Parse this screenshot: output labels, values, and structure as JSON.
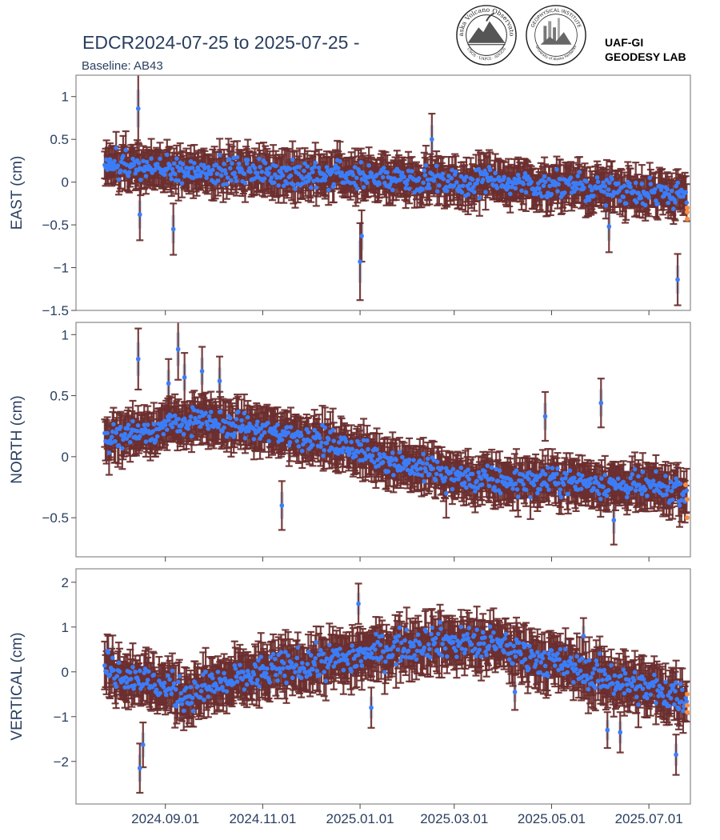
{
  "header": {
    "title": "EDCR2024-07-25 to 2025-07-25 -",
    "subtitle": "Baseline: AB43",
    "lab_line1": "UAF-GI",
    "lab_line2": "GEODESY LAB",
    "logo_avo_text": "Alaska Volcano Observatory",
    "logo_avo_bottom": "USGS · UAFGI · ADGGS",
    "logo_gi_text": "GEOPHYSICAL INSTITUTE",
    "logo_gi_bottom": "University of Alaska Fairbanks"
  },
  "colors": {
    "errorbar": "#6b2e2e",
    "point": "#3b7df8",
    "highlight": "#fc8d3c",
    "band": "#c8dcee",
    "axis_text": "#2a3f5f",
    "frame": "#888888"
  },
  "chart_data": [
    {
      "type": "scatter",
      "ylabel": "EAST (cm)",
      "ylim": [
        -1.5,
        1.25
      ],
      "yticks": [
        {
          "v": 1,
          "t": "1"
        },
        {
          "v": 0.5,
          "t": "0.5"
        },
        {
          "v": 0,
          "t": "0"
        },
        {
          "v": -0.5,
          "t": "−0.5"
        },
        {
          "v": -1,
          "t": "−1"
        },
        {
          "v": -1.5,
          "t": "−1.5"
        }
      ],
      "trend": [
        [
          0,
          0.18
        ],
        [
          90,
          0.13
        ],
        [
          180,
          0.03
        ],
        [
          280,
          -0.03
        ],
        [
          365,
          -0.15
        ]
      ],
      "spread": 0.15,
      "err": 0.2,
      "outliers": [
        [
          21,
          0.86,
          0.4
        ],
        [
          22,
          -0.38,
          0.3
        ],
        [
          43,
          -0.55,
          0.3
        ],
        [
          160,
          -0.93,
          0.45
        ],
        [
          161,
          -0.63,
          0.3
        ],
        [
          205,
          0.5,
          0.3
        ],
        [
          316,
          -0.52,
          0.3
        ],
        [
          359,
          -1.14,
          0.3
        ]
      ],
      "highlight": [
        [
          365,
          -0.35
        ],
        [
          365,
          -0.3
        ],
        [
          365,
          -0.43
        ]
      ]
    },
    {
      "type": "scatter",
      "ylabel": "NORTH (cm)",
      "ylim": [
        -0.82,
        1.1
      ],
      "yticks": [
        {
          "v": 1,
          "t": "1"
        },
        {
          "v": 0.5,
          "t": "0.5"
        },
        {
          "v": 0,
          "t": "0"
        },
        {
          "v": -0.5,
          "t": "−0.5"
        }
      ],
      "trend": [
        [
          0,
          0.15
        ],
        [
          60,
          0.3
        ],
        [
          130,
          0.15
        ],
        [
          185,
          -0.05
        ],
        [
          230,
          -0.2
        ],
        [
          290,
          -0.2
        ],
        [
          365,
          -0.28
        ]
      ],
      "spread": 0.1,
      "err": 0.15,
      "outliers": [
        [
          21,
          0.8,
          0.25
        ],
        [
          40,
          0.6,
          0.2
        ],
        [
          46,
          0.88,
          0.25
        ],
        [
          50,
          0.65,
          0.2
        ],
        [
          61,
          0.7,
          0.2
        ],
        [
          72,
          0.62,
          0.2
        ],
        [
          111,
          -0.4,
          0.2
        ],
        [
          214,
          -0.3,
          0.2
        ],
        [
          276,
          0.33,
          0.2
        ],
        [
          311,
          0.44,
          0.2
        ],
        [
          319,
          -0.52,
          0.2
        ]
      ],
      "highlight": [
        [
          364,
          -0.23
        ],
        [
          365,
          -0.35
        ],
        [
          365,
          -0.5
        ]
      ]
    },
    {
      "type": "scatter",
      "ylabel": "VERTICAL (cm)",
      "ylim": [
        -2.95,
        2.3
      ],
      "yticks": [
        {
          "v": 2,
          "t": "2"
        },
        {
          "v": 1,
          "t": "1"
        },
        {
          "v": 0,
          "t": "0"
        },
        {
          "v": -1,
          "t": "−1"
        },
        {
          "v": -2,
          "t": "−2"
        }
      ],
      "trend": [
        [
          0,
          0.1
        ],
        [
          25,
          -0.2
        ],
        [
          50,
          -0.5
        ],
        [
          100,
          0.0
        ],
        [
          150,
          0.3
        ],
        [
          205,
          0.7
        ],
        [
          245,
          0.6
        ],
        [
          300,
          0.0
        ],
        [
          365,
          -0.6
        ]
      ],
      "spread": 0.35,
      "err": 0.45,
      "outliers": [
        [
          22,
          -2.15,
          0.55
        ],
        [
          24,
          -1.63,
          0.5
        ],
        [
          159,
          1.52,
          0.45
        ],
        [
          167,
          -0.8,
          0.45
        ],
        [
          257,
          -0.45,
          0.4
        ],
        [
          300,
          0.8,
          0.4
        ],
        [
          315,
          -1.3,
          0.4
        ],
        [
          323,
          -1.35,
          0.45
        ],
        [
          358,
          -1.85,
          0.45
        ]
      ],
      "highlight": [
        [
          365,
          -0.75
        ],
        [
          365,
          -0.5
        ],
        [
          365,
          -0.9
        ]
      ]
    }
  ],
  "x_axis": {
    "start": "2024-07-25",
    "end": "2025-07-25",
    "ticks": [
      {
        "date": "2024-09-01",
        "t": "2024.09.01"
      },
      {
        "date": "2024-11-01",
        "t": "2024.11.01"
      },
      {
        "date": "2025-01-01",
        "t": "2025.01.01"
      },
      {
        "date": "2025-03-01",
        "t": "2025.03.01"
      },
      {
        "date": "2025-05-01",
        "t": "2025.05.01"
      },
      {
        "date": "2025-07-01",
        "t": "2025.07.01"
      }
    ]
  }
}
